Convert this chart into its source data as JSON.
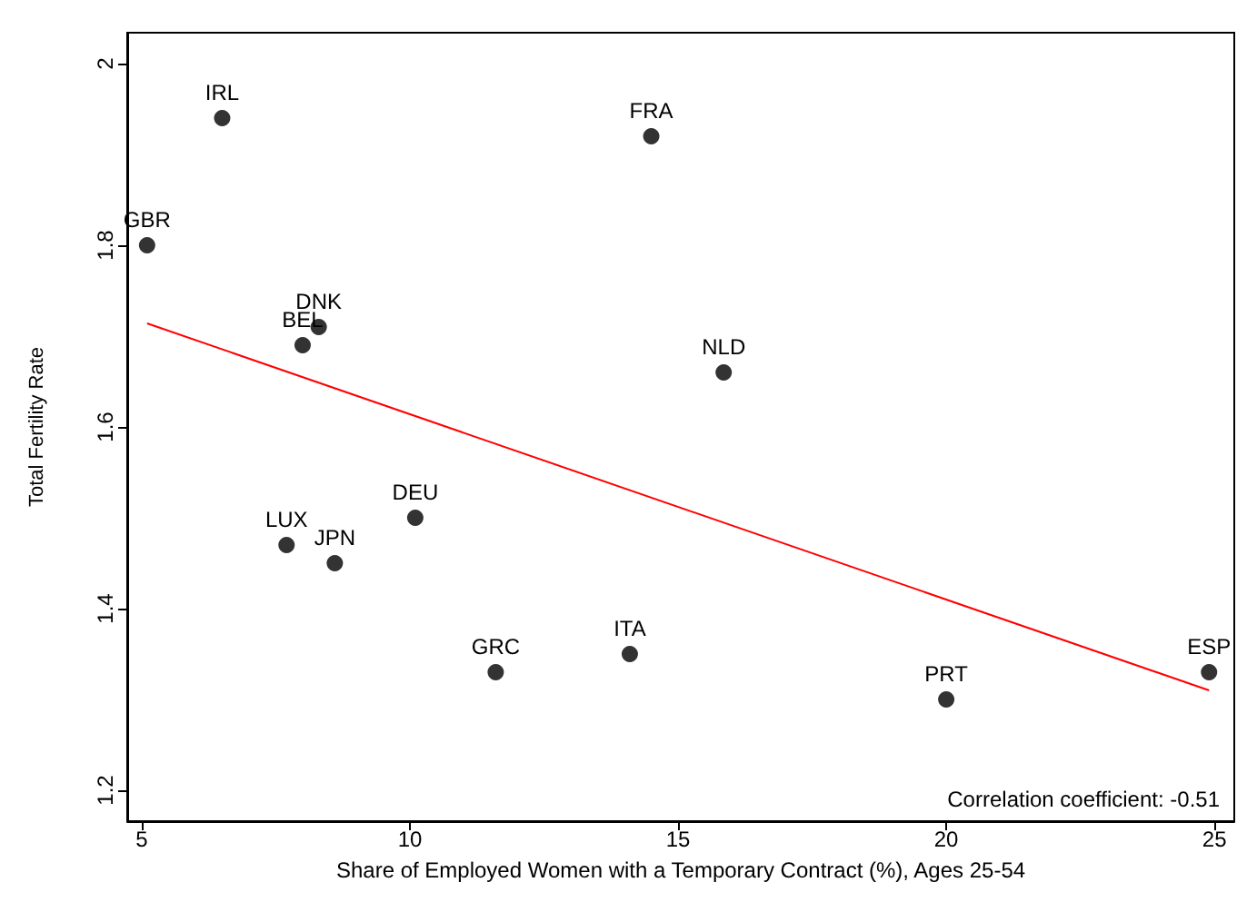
{
  "chart_data": {
    "type": "scatter",
    "xlabel": "Share of Employed Women with a Temporary Contract (%), Ages 25-54",
    "ylabel": "Total Fertility Rate",
    "xlim": [
      4.73,
      25.37
    ],
    "xticks": [
      5,
      10,
      15,
      20,
      25
    ],
    "ylim": [
      1.166,
      2.034
    ],
    "yticks": [
      1.2,
      1.4,
      1.6,
      1.8,
      2
    ],
    "grid": false,
    "marker": "circle",
    "series": [
      {
        "color": "#000000",
        "x": [
          6.5,
          14.5,
          5.1,
          8.3,
          8.0,
          15.85,
          10.1,
          7.7,
          8.6,
          11.6,
          14.1,
          20.0,
          24.9
        ],
        "values": [
          1.94,
          1.92,
          1.8,
          1.71,
          1.69,
          1.66,
          1.5,
          1.47,
          1.45,
          1.33,
          1.35,
          1.3,
          1.33
        ]
      },
      {
        "type": "line",
        "color": "#ff0000",
        "marker": "none",
        "x": [
          5.1,
          24.9
        ],
        "values": [
          1.714,
          1.31
        ]
      }
    ],
    "annotations": [
      {
        "text": "IRL",
        "x": 6.5,
        "y": 1.94
      },
      {
        "text": "FRA",
        "x": 14.5,
        "y": 1.92
      },
      {
        "text": "GBR",
        "x": 5.1,
        "y": 1.8
      },
      {
        "text": "DNK",
        "x": 8.3,
        "y": 1.71
      },
      {
        "text": "BEL",
        "x": 8.0,
        "y": 1.69
      },
      {
        "text": "NLD",
        "x": 15.85,
        "y": 1.66
      },
      {
        "text": "DEU",
        "x": 10.1,
        "y": 1.5
      },
      {
        "text": "LUX",
        "x": 7.7,
        "y": 1.47
      },
      {
        "text": "JPN",
        "x": 8.6,
        "y": 1.45
      },
      {
        "text": "GRC",
        "x": 11.6,
        "y": 1.33
      },
      {
        "text": "ITA",
        "x": 14.1,
        "y": 1.35
      },
      {
        "text": "PRT",
        "x": 20.0,
        "y": 1.3
      },
      {
        "text": "ESP",
        "x": 24.9,
        "y": 1.33
      },
      "Correlation coefficient: -0.51"
    ]
  }
}
